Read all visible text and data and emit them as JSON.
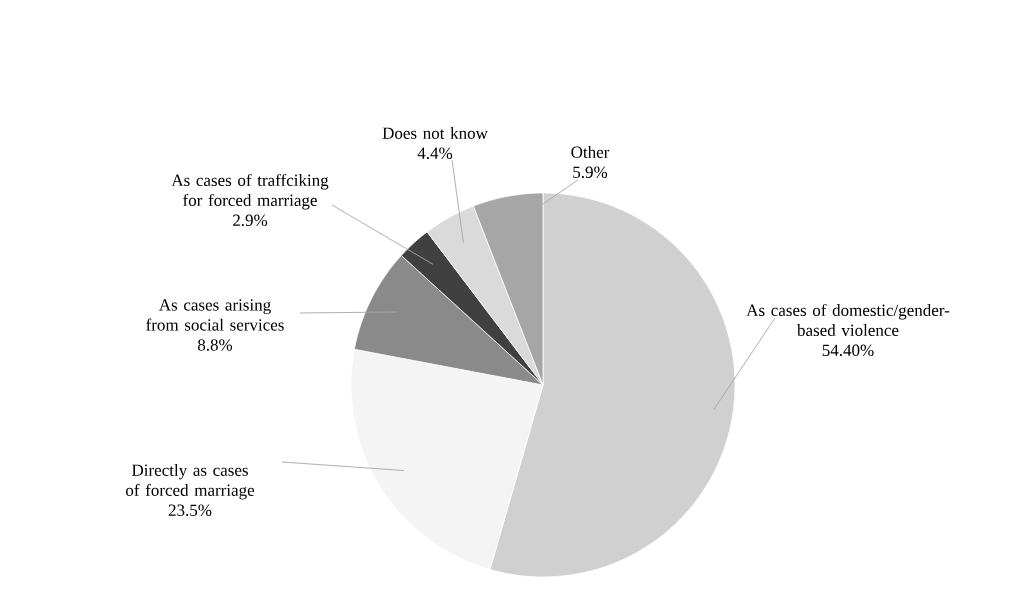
{
  "chart_data": {
    "type": "pie",
    "categories": [
      "As cases of domestic/gender-based violence",
      "Directly as cases of forced marriage",
      "As cases arising from social services",
      "As cases of traffciking for forced marriage",
      "Does not know",
      "Other"
    ],
    "values": [
      54.4,
      23.5,
      8.8,
      2.9,
      4.4,
      5.9
    ],
    "value_labels": [
      "54.40%",
      "23.5%",
      "8.8%",
      "2.9%",
      "4.4%",
      "5.9%"
    ],
    "colors": [
      "#d0d0d0",
      "#f4f4f4",
      "#8a8a8a",
      "#404040",
      "#dadada",
      "#a6a6a6"
    ]
  }
}
